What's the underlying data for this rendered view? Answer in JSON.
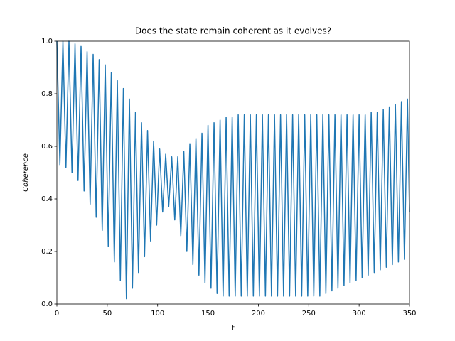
{
  "chart_data": {
    "type": "line",
    "title": "Does the state remain coherent as it evolves?",
    "x_label": "t",
    "y_label": "Coherence",
    "color": "#1f77b4",
    "xlim": [
      0,
      350
    ],
    "ylim": [
      0,
      1
    ],
    "xticks": [
      0,
      50,
      100,
      150,
      200,
      250,
      300,
      350
    ],
    "yticks": [
      {
        "value": 0,
        "label": "0.0"
      },
      0.2,
      0.4,
      0.6,
      0.8,
      {
        "value": 1,
        "label": "1.0"
      }
    ],
    "x": [
      0,
      3,
      6,
      9,
      12,
      15,
      18,
      21,
      24,
      27,
      30,
      33,
      36,
      39,
      42,
      45,
      48,
      51,
      54,
      57,
      60,
      63,
      66,
      69,
      72,
      75,
      78,
      81,
      84,
      87,
      90,
      93,
      96,
      99,
      102,
      105,
      108,
      111,
      114,
      117,
      120,
      123,
      126,
      129,
      132,
      135,
      138,
      141,
      144,
      147,
      150,
      153,
      156,
      159,
      162,
      165,
      168,
      171,
      174,
      177,
      180,
      183,
      186,
      189,
      192,
      195,
      198,
      201,
      204,
      207,
      210,
      213,
      216,
      219,
      222,
      225,
      228,
      231,
      234,
      237,
      240,
      243,
      246,
      249,
      252,
      255,
      258,
      261,
      264,
      267,
      270,
      273,
      276,
      279,
      282,
      285,
      288,
      291,
      294,
      297,
      300,
      303,
      306,
      309,
      312,
      315,
      318,
      321,
      324,
      327,
      330,
      333,
      336,
      339,
      342,
      345,
      348,
      350
    ],
    "values": [
      1.0,
      0.53,
      1.0,
      0.52,
      1.0,
      0.5,
      0.99,
      0.47,
      0.98,
      0.43,
      0.96,
      0.38,
      0.95,
      0.33,
      0.93,
      0.28,
      0.91,
      0.22,
      0.88,
      0.16,
      0.85,
      0.09,
      0.82,
      0.02,
      0.78,
      0.06,
      0.73,
      0.12,
      0.69,
      0.18,
      0.66,
      0.24,
      0.62,
      0.3,
      0.59,
      0.35,
      0.57,
      0.37,
      0.56,
      0.32,
      0.56,
      0.26,
      0.58,
      0.2,
      0.61,
      0.15,
      0.63,
      0.11,
      0.65,
      0.08,
      0.68,
      0.06,
      0.69,
      0.04,
      0.7,
      0.03,
      0.71,
      0.03,
      0.71,
      0.03,
      0.72,
      0.03,
      0.72,
      0.03,
      0.72,
      0.03,
      0.72,
      0.03,
      0.72,
      0.03,
      0.72,
      0.03,
      0.72,
      0.03,
      0.72,
      0.03,
      0.72,
      0.03,
      0.72,
      0.03,
      0.72,
      0.03,
      0.72,
      0.03,
      0.72,
      0.03,
      0.72,
      0.03,
      0.72,
      0.04,
      0.72,
      0.05,
      0.72,
      0.06,
      0.72,
      0.07,
      0.72,
      0.08,
      0.72,
      0.09,
      0.72,
      0.1,
      0.72,
      0.11,
      0.73,
      0.12,
      0.73,
      0.13,
      0.74,
      0.14,
      0.75,
      0.15,
      0.76,
      0.16,
      0.77,
      0.17,
      0.78,
      0.35
    ]
  }
}
